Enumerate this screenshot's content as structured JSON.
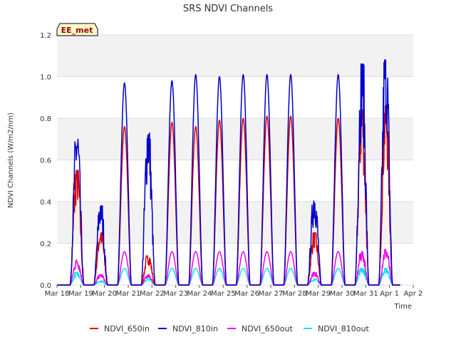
{
  "chart_data": {
    "type": "line",
    "title": "SRS NDVI Channels",
    "xlabel": "Time",
    "ylabel": "NDVI Channels (W/m2/nm)",
    "ylim": [
      0,
      1.2
    ],
    "y_ticks": [
      "0.0",
      "0.2",
      "0.4",
      "0.6",
      "0.8",
      "1.0",
      "1.2"
    ],
    "x_range": [
      "Mar 18",
      "Apr 2"
    ],
    "x_ticks": [
      "Mar 18",
      "Mar 19",
      "Mar 20",
      "Mar 21",
      "Mar 22",
      "Mar 23",
      "Mar 24",
      "Mar 25",
      "Mar 26",
      "Mar 27",
      "Mar 28",
      "Mar 29",
      "Mar 30",
      "Mar 31",
      "Apr 1",
      "Apr 2"
    ],
    "grid": "horizontal bands",
    "legend_position": "bottom",
    "annotation": "EE_met",
    "daily_peaks": {
      "days": [
        "Mar 18",
        "Mar 19",
        "Mar 20",
        "Mar 21",
        "Mar 22",
        "Mar 23",
        "Mar 24",
        "Mar 25",
        "Mar 26",
        "Mar 27",
        "Mar 28",
        "Mar 29",
        "Mar 30",
        "Mar 31",
        "Apr 1"
      ],
      "day_offset_start": 0.55,
      "day_offset_end": 1.0
    },
    "series": [
      {
        "name": "NDVI_650in",
        "color": "#dd0000",
        "peaks": [
          0.55,
          0.25,
          0.76,
          0.14,
          0.78,
          0.76,
          0.79,
          0.8,
          0.81,
          0.81,
          0.25,
          0.8,
          0.84,
          0.86
        ]
      },
      {
        "name": "NDVI_810in",
        "color": "#0000cc",
        "peaks": [
          0.7,
          0.38,
          0.97,
          0.73,
          0.98,
          1.01,
          1.0,
          1.01,
          1.01,
          1.01,
          0.42,
          1.01,
          1.06,
          1.08
        ]
      },
      {
        "name": "NDVI_650out",
        "color": "#ee00ee",
        "peaks": [
          0.12,
          0.05,
          0.16,
          0.05,
          0.16,
          0.16,
          0.16,
          0.16,
          0.16,
          0.16,
          0.06,
          0.16,
          0.16,
          0.17
        ]
      },
      {
        "name": "NDVI_810out",
        "color": "#00e5ee",
        "peaks": [
          0.06,
          0.02,
          0.08,
          0.03,
          0.08,
          0.08,
          0.08,
          0.08,
          0.08,
          0.08,
          0.03,
          0.08,
          0.08,
          0.08
        ]
      }
    ]
  }
}
